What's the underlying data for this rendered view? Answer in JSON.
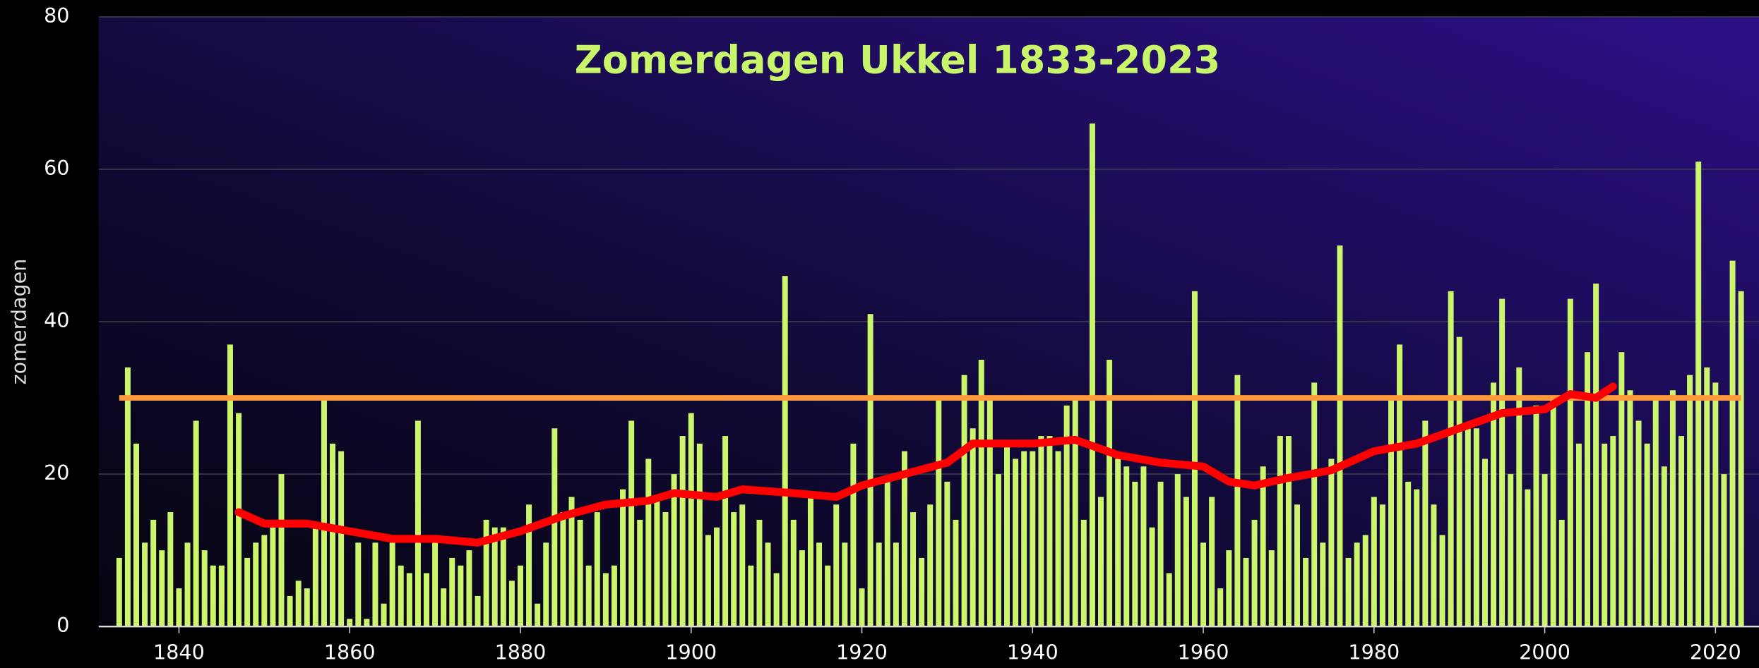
{
  "chart_data": {
    "type": "bar",
    "title": "Zomerdagen Ukkel 1833-2023",
    "y_label": "zomerdagen",
    "x": [
      1833,
      1834,
      1835,
      1836,
      1837,
      1838,
      1839,
      1840,
      1841,
      1842,
      1843,
      1844,
      1845,
      1846,
      1847,
      1848,
      1849,
      1850,
      1851,
      1852,
      1853,
      1854,
      1855,
      1856,
      1857,
      1858,
      1859,
      1860,
      1861,
      1862,
      1863,
      1864,
      1865,
      1866,
      1867,
      1868,
      1869,
      1870,
      1871,
      1872,
      1873,
      1874,
      1875,
      1876,
      1877,
      1878,
      1879,
      1880,
      1881,
      1882,
      1883,
      1884,
      1885,
      1886,
      1887,
      1888,
      1889,
      1890,
      1891,
      1892,
      1893,
      1894,
      1895,
      1896,
      1897,
      1898,
      1899,
      1900,
      1901,
      1902,
      1903,
      1904,
      1905,
      1906,
      1907,
      1908,
      1909,
      1910,
      1911,
      1912,
      1913,
      1914,
      1915,
      1916,
      1917,
      1918,
      1919,
      1920,
      1921,
      1922,
      1923,
      1924,
      1925,
      1926,
      1927,
      1928,
      1929,
      1930,
      1931,
      1932,
      1933,
      1934,
      1935,
      1936,
      1937,
      1938,
      1939,
      1940,
      1941,
      1942,
      1943,
      1944,
      1945,
      1946,
      1947,
      1948,
      1949,
      1950,
      1951,
      1952,
      1953,
      1954,
      1955,
      1956,
      1957,
      1958,
      1959,
      1960,
      1961,
      1962,
      1963,
      1964,
      1965,
      1966,
      1967,
      1968,
      1969,
      1970,
      1971,
      1972,
      1973,
      1974,
      1975,
      1976,
      1977,
      1978,
      1979,
      1980,
      1981,
      1982,
      1983,
      1984,
      1985,
      1986,
      1987,
      1988,
      1989,
      1990,
      1991,
      1992,
      1993,
      1994,
      1995,
      1996,
      1997,
      1998,
      1999,
      2000,
      2001,
      2002,
      2003,
      2004,
      2005,
      2006,
      2007,
      2008,
      2009,
      2010,
      2011,
      2012,
      2013,
      2014,
      2015,
      2016,
      2017,
      2018,
      2019,
      2020,
      2021,
      2022,
      2023
    ],
    "values": [
      9,
      34,
      24,
      11,
      14,
      10,
      15,
      5,
      11,
      27,
      10,
      8,
      8,
      37,
      28,
      9,
      11,
      12,
      13,
      20,
      4,
      6,
      5,
      13,
      30,
      24,
      23,
      1,
      11,
      1,
      11,
      3,
      11,
      8,
      7,
      27,
      7,
      12,
      5,
      9,
      8,
      10,
      4,
      14,
      13,
      13,
      6,
      8,
      16,
      3,
      11,
      26,
      15,
      17,
      14,
      8,
      15,
      7,
      8,
      18,
      27,
      14,
      22,
      17,
      15,
      20,
      25,
      28,
      24,
      12,
      13,
      25,
      15,
      16,
      8,
      14,
      11,
      7,
      46,
      14,
      10,
      17,
      11,
      8,
      16,
      11,
      24,
      5,
      41,
      11,
      19,
      11,
      23,
      15,
      9,
      16,
      30,
      19,
      14,
      33,
      26,
      35,
      30,
      20,
      24,
      22,
      23,
      23,
      25,
      25,
      23,
      29,
      30,
      14,
      66,
      17,
      35,
      22,
      21,
      19,
      21,
      13,
      19,
      7,
      20,
      17,
      44,
      11,
      17,
      5,
      10,
      33,
      9,
      14,
      21,
      10,
      25,
      25,
      16,
      9,
      32,
      11,
      22,
      50,
      9,
      11,
      12,
      17,
      16,
      30,
      37,
      19,
      18,
      27,
      16,
      12,
      44,
      38,
      26,
      26,
      22,
      32,
      43,
      20,
      34,
      18,
      29,
      20,
      30,
      14,
      43,
      24,
      36,
      45,
      24,
      25,
      36,
      31,
      27,
      24,
      30,
      21,
      31,
      25,
      33,
      61,
      34,
      32,
      20,
      48,
      44
    ],
    "color": "#ccf56b",
    "trend": {
      "color": "#ff0000",
      "x": [
        1847,
        1850,
        1855,
        1860,
        1865,
        1870,
        1875,
        1880,
        1885,
        1890,
        1895,
        1898,
        1903,
        1906,
        1912,
        1917,
        1920,
        1925,
        1930,
        1933,
        1940,
        1945,
        1950,
        1955,
        1960,
        1963,
        1966,
        1970,
        1975,
        1980,
        1985,
        1990,
        1995,
        2000,
        2003,
        2006,
        2008
      ],
      "values": [
        15,
        13.5,
        13.5,
        12.5,
        11.5,
        11.5,
        11,
        12.5,
        14.5,
        16,
        16.5,
        17.5,
        17,
        18,
        17.5,
        17,
        18.5,
        20,
        21.5,
        24,
        24,
        24.5,
        22.5,
        21.5,
        21,
        19,
        18.5,
        19.5,
        20.5,
        23,
        24,
        26,
        28,
        28.5,
        30.5,
        30,
        31.5
      ]
    },
    "reference_line": {
      "value": 30,
      "color": "#ff9a3c"
    },
    "xlim": [
      1830.6,
      2025.1
    ],
    "ylim": [
      0,
      80
    ],
    "xticks": [
      1840,
      1860,
      1880,
      1900,
      1920,
      1940,
      1960,
      1980,
      2000,
      2020
    ],
    "yticks": [
      0,
      20,
      40,
      60,
      80
    ],
    "grid": true
  }
}
